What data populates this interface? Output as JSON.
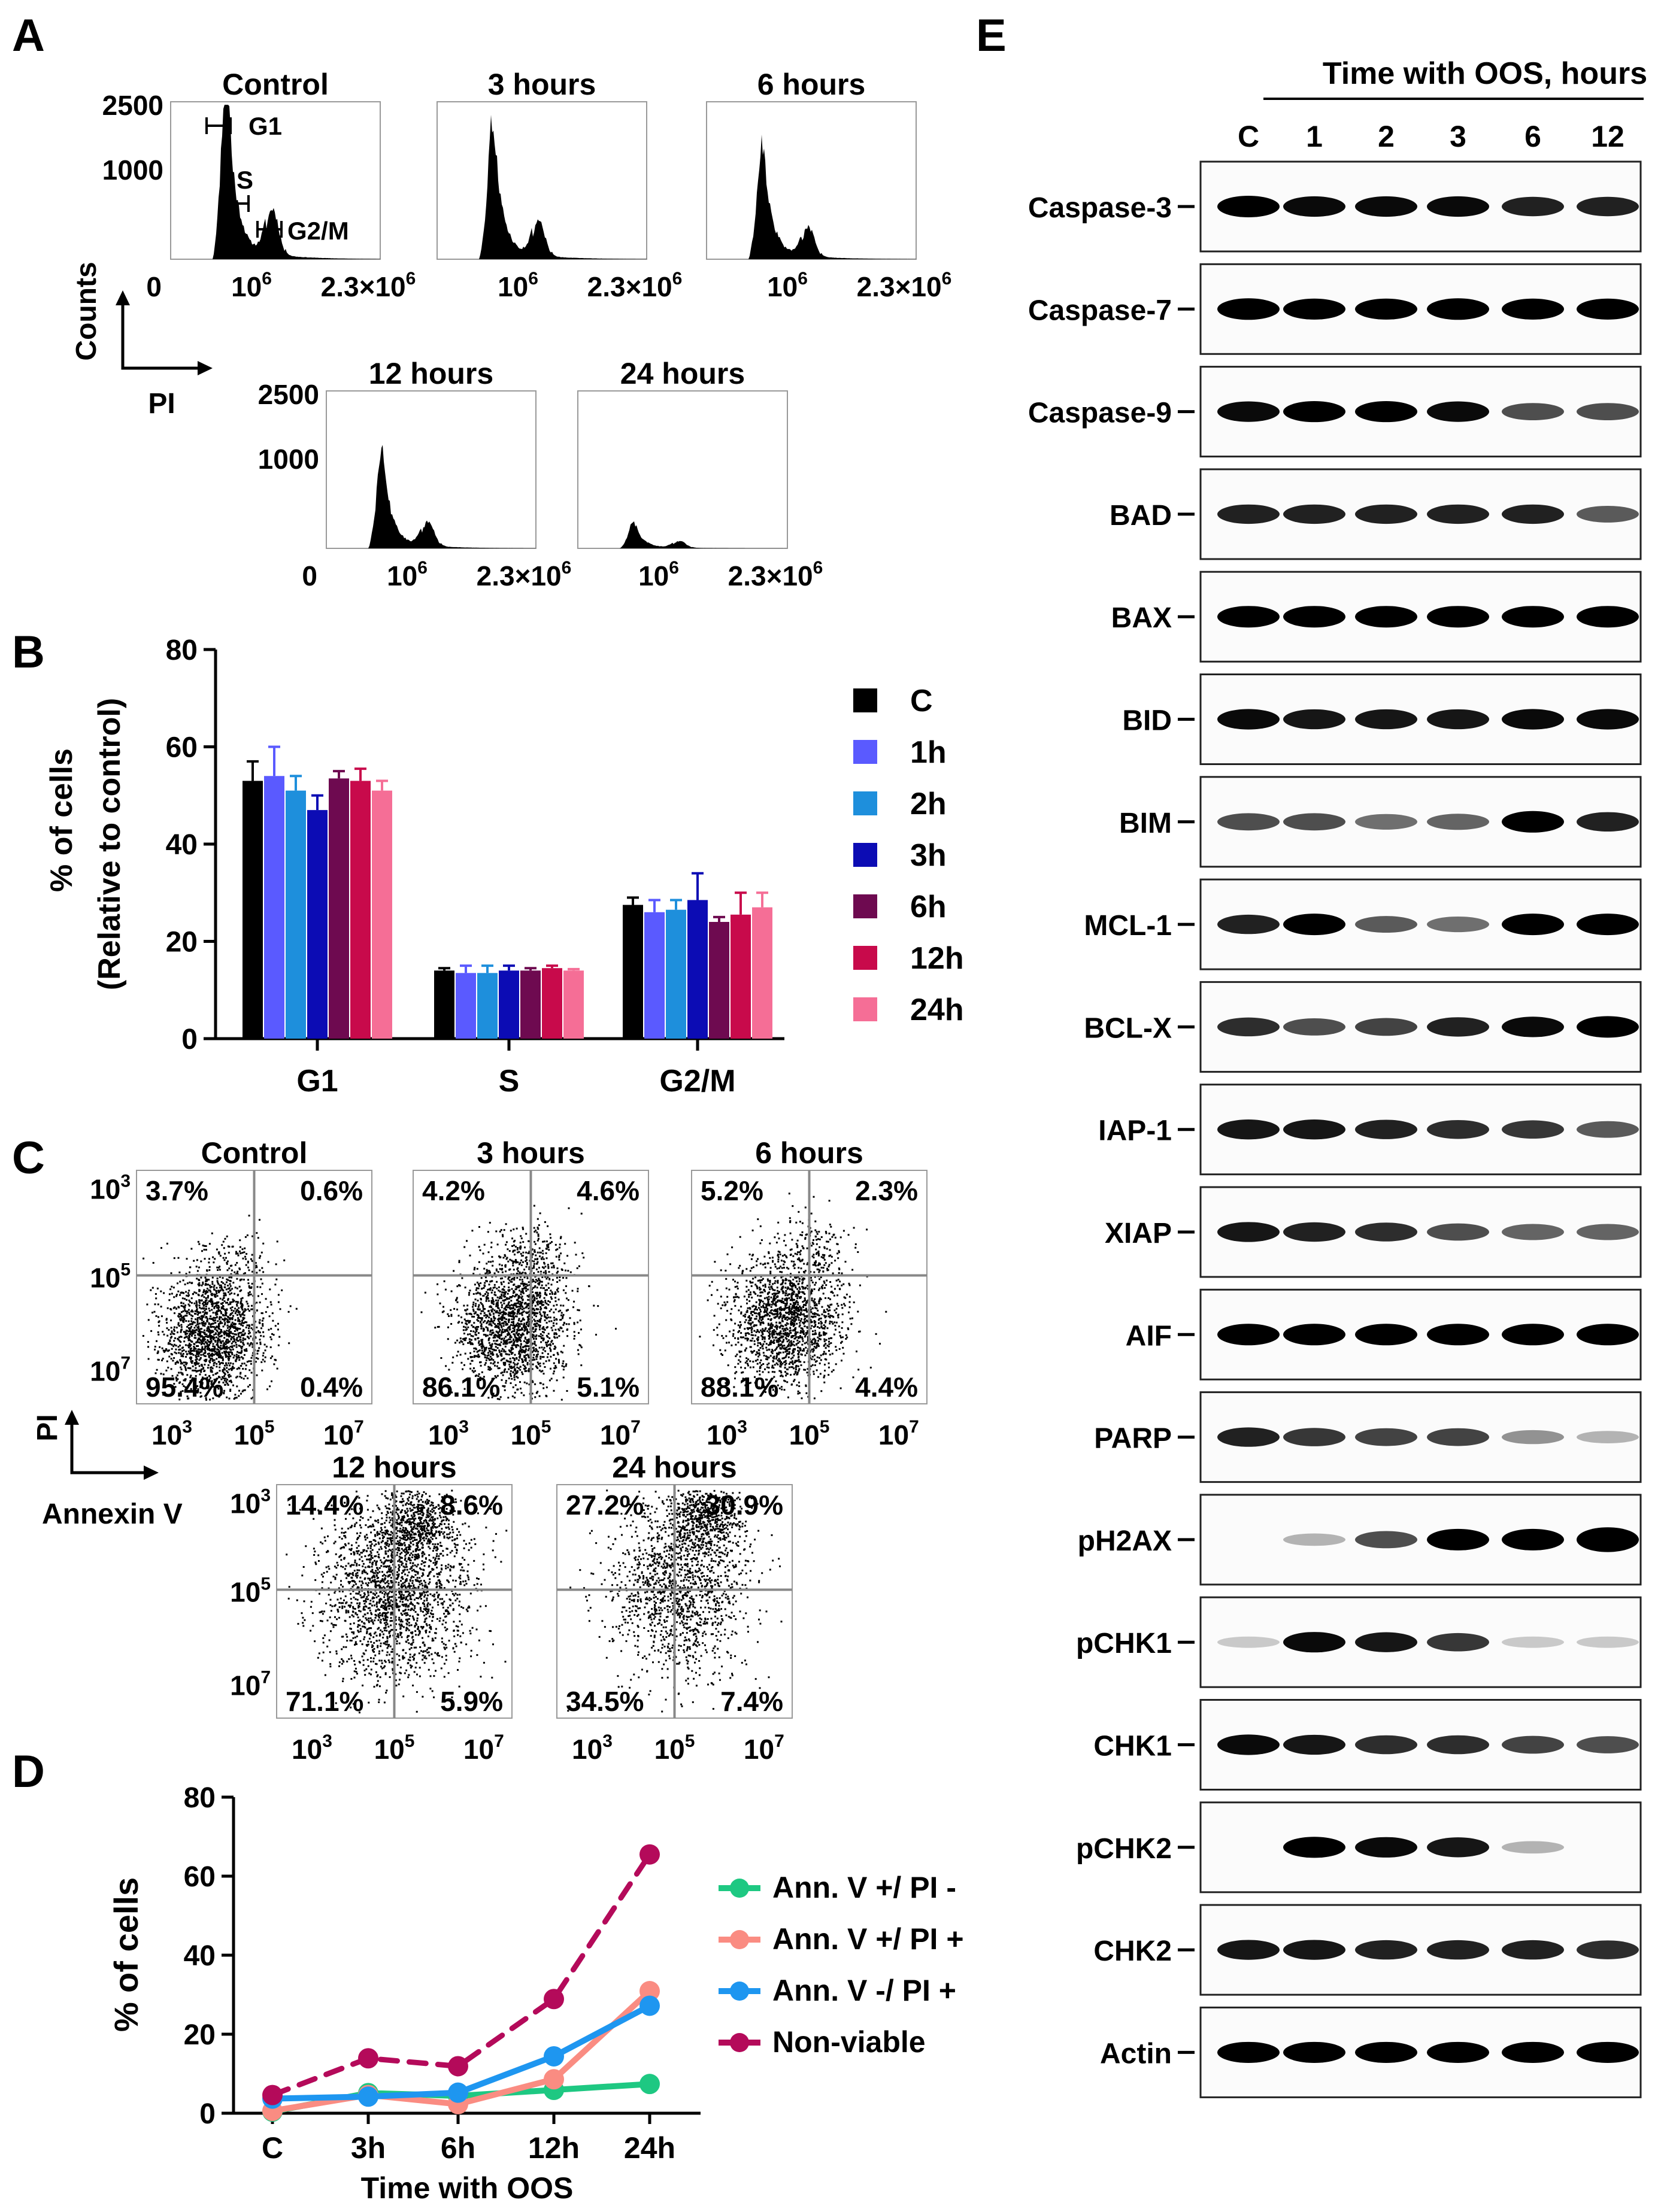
{
  "panel_letters": {
    "a": "A",
    "b": "B",
    "c": "C",
    "d": "D",
    "e": "E"
  },
  "panel_a": {
    "titles": [
      "Control",
      "3 hours",
      "6 hours",
      "12 hours",
      "24 hours"
    ],
    "y_ticks": [
      "2500",
      "1000",
      "0"
    ],
    "x_ticks": [
      "10",
      "6",
      "2.3×10",
      "6"
    ],
    "gate_labels": {
      "g1": "G1",
      "s": "S",
      "g2m": "G2/M"
    },
    "axis_y": "Counts",
    "axis_x": "PI"
  },
  "panel_c": {
    "titles": [
      "Control",
      "3 hours",
      "6 hours",
      "12 hours",
      "24 hours"
    ],
    "quadrants": [
      [
        "3.7%",
        "0.6%",
        "95.4%",
        "0.4%"
      ],
      [
        "4.2%",
        "4.6%",
        "86.1%",
        "5.1%"
      ],
      [
        "5.2%",
        "2.3%",
        "88.1%",
        "4.4%"
      ],
      [
        "14.4%",
        "8.6%",
        "71.1%",
        "5.9%"
      ],
      [
        "27.2%",
        "30.9%",
        "34.5%",
        "7.4%"
      ]
    ],
    "tick_base": "10",
    "tick_exps": [
      "3",
      "5",
      "7"
    ],
    "axis_y": "PI",
    "axis_x": "Annexin V"
  },
  "chart_data": [
    {
      "type": "bar",
      "panel": "B",
      "categories": [
        "G1",
        "S",
        "G2/M"
      ],
      "series": [
        {
          "name": "C",
          "color": "#000000",
          "values": [
            53,
            14,
            27.5
          ],
          "errors": [
            4,
            0.5,
            1.5
          ]
        },
        {
          "name": "1h",
          "color": "#5a5aff",
          "values": [
            54,
            13.5,
            26
          ],
          "errors": [
            6,
            1.5,
            2.5
          ]
        },
        {
          "name": "2h",
          "color": "#1e8fdc",
          "values": [
            51,
            13.5,
            26.5
          ],
          "errors": [
            3,
            1.5,
            2
          ]
        },
        {
          "name": "3h",
          "color": "#0c0cb4",
          "values": [
            47,
            14,
            28.5
          ],
          "errors": [
            3,
            1,
            5.5
          ]
        },
        {
          "name": "6h",
          "color": "#6e0a50",
          "values": [
            53.5,
            14,
            24
          ],
          "errors": [
            1.5,
            0.5,
            1
          ]
        },
        {
          "name": "12h",
          "color": "#c80a4b",
          "values": [
            53,
            14.5,
            25.5
          ],
          "errors": [
            2.5,
            0.5,
            4.5
          ]
        },
        {
          "name": "24h",
          "color": "#f56e96",
          "values": [
            51,
            14,
            27
          ],
          "errors": [
            2,
            0.3,
            3
          ]
        }
      ],
      "ylabel": "% of cells (Relative to control)",
      "ylabel_lines": [
        "% of cells",
        "(Relative to control)"
      ],
      "ylim": [
        0,
        80
      ],
      "yticks": [
        "0",
        "20",
        "40",
        "60",
        "80"
      ]
    },
    {
      "type": "line",
      "panel": "D",
      "x": [
        "C",
        "3h",
        "6h",
        "12h",
        "24h"
      ],
      "series": [
        {
          "name": "Ann. V +/ PI -",
          "color": "#1ec882",
          "values": [
            0.4,
            5.1,
            4.4,
            5.9,
            7.4
          ],
          "dashed": false
        },
        {
          "name": "Ann. V +/ PI +",
          "color": "#fa8c82",
          "values": [
            0.6,
            4.6,
            2.3,
            8.6,
            30.9
          ],
          "dashed": false
        },
        {
          "name": "Ann. V -/ PI +",
          "color": "#1e96f0",
          "values": [
            3.7,
            4.2,
            5.2,
            14.4,
            27.2
          ],
          "dashed": false
        },
        {
          "name": "Non-viable",
          "color": "#b40a5a",
          "values": [
            4.6,
            13.9,
            11.9,
            28.9,
            65.5
          ],
          "dashed": true
        }
      ],
      "xlabel": "Time with OOS",
      "ylabel": "% of cells",
      "ylim": [
        0,
        80
      ],
      "yticks": [
        "0",
        "20",
        "40",
        "60",
        "80"
      ]
    }
  ],
  "panel_e": {
    "header": "Time with OOS, hours",
    "lanes": [
      "C",
      "1",
      "2",
      "3",
      "6",
      "12"
    ],
    "proteins": [
      "Caspase-3",
      "Caspase-7",
      "Caspase-9",
      "BAD",
      "BAX",
      "BID",
      "BIM",
      "MCL-1",
      "BCL-X",
      "IAP-1",
      "XIAP",
      "AIF",
      "PARP",
      "pH2AX",
      "pCHK1",
      "CHK1",
      "pCHK2",
      "CHK2",
      "Actin"
    ],
    "intensities": [
      [
        1,
        0.9,
        0.9,
        0.9,
        0.8,
        0.8
      ],
      [
        1,
        0.95,
        0.95,
        1,
        0.95,
        0.95
      ],
      [
        0.9,
        0.95,
        0.95,
        0.9,
        0.6,
        0.6
      ],
      [
        0.8,
        0.8,
        0.8,
        0.8,
        0.8,
        0.55
      ],
      [
        1,
        1,
        1,
        1,
        1,
        1
      ],
      [
        0.9,
        0.85,
        0.85,
        0.85,
        0.9,
        0.9
      ],
      [
        0.6,
        0.6,
        0.45,
        0.5,
        1,
        0.8
      ],
      [
        0.8,
        1,
        0.55,
        0.45,
        1,
        1
      ],
      [
        0.75,
        0.6,
        0.65,
        0.8,
        0.9,
        1
      ],
      [
        0.85,
        0.85,
        0.8,
        0.75,
        0.7,
        0.55
      ],
      [
        0.85,
        0.8,
        0.75,
        0.6,
        0.5,
        0.5
      ],
      [
        1,
        1,
        1,
        1,
        1,
        1
      ],
      [
        0.8,
        0.7,
        0.65,
        0.65,
        0.3,
        0.15
      ],
      [
        0,
        0.15,
        0.6,
        1,
        1,
        1.3
      ],
      [
        0.05,
        0.9,
        0.85,
        0.7,
        0.05,
        0.05
      ],
      [
        0.9,
        0.85,
        0.75,
        0.75,
        0.65,
        0.6
      ],
      [
        0,
        0.95,
        0.9,
        0.85,
        0.15,
        0
      ],
      [
        0.85,
        0.85,
        0.8,
        0.8,
        0.8,
        0.75
      ],
      [
        0.95,
        0.95,
        0.95,
        0.95,
        0.95,
        0.95
      ]
    ]
  }
}
